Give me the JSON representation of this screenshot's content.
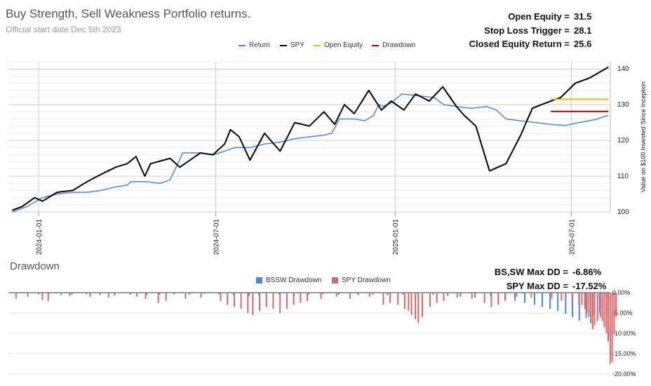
{
  "header": {
    "title": "Buy Strength, Sell Weakness Portfolio returns.",
    "subtitle": "Official start date Dec 5th 2023"
  },
  "stats": {
    "open_equity_label": "Open Equity =",
    "open_equity_value": "31.5",
    "stop_loss_label": "Stop Loss Trigger =",
    "stop_loss_value": "28.1",
    "closed_equity_label": "Closed Equity Return =",
    "closed_equity_value": "25.6"
  },
  "drawdown_stats": {
    "bssw_label": "BS,SW Max DD =",
    "bssw_value": "-6.86%",
    "spy_label": "SPY Max DD =",
    "spy_value": "-17.52%"
  },
  "drawdown_title": "Drawdown",
  "chart_data": [
    {
      "type": "line",
      "title": "Buy Strength, Sell Weakness Portfolio returns.",
      "subtitle": "Official start date Dec 5th 2023",
      "ylabel": "Value on $100 Invested Since Inception",
      "ylim": [
        100,
        142
      ],
      "yticks": [
        "100",
        "110",
        "120",
        "130",
        "140"
      ],
      "xticks": [
        "2024-01-01",
        "2024-07-01",
        "2025-01-01",
        "2025-07-01"
      ],
      "xlim": [
        "2023-12-01",
        "2025-08-10"
      ],
      "legend_position": "top",
      "grid": true,
      "series": [
        {
          "name": "Return",
          "color": "#4a86e8",
          "points": [
            [
              "2023-12-05",
              100.0
            ],
            [
              "2023-12-20",
              101.5
            ],
            [
              "2024-01-05",
              104.0
            ],
            [
              "2024-01-20",
              105.0
            ],
            [
              "2024-02-05",
              105.5
            ],
            [
              "2024-02-20",
              105.5
            ],
            [
              "2024-03-05",
              106.0
            ],
            [
              "2024-03-20",
              107.0
            ],
            [
              "2024-04-01",
              107.5
            ],
            [
              "2024-04-05",
              108.5
            ],
            [
              "2024-04-20",
              108.5
            ],
            [
              "2024-05-05",
              108.0
            ],
            [
              "2024-05-15",
              109.0
            ],
            [
              "2024-05-22",
              113.0
            ],
            [
              "2024-05-28",
              116.5
            ],
            [
              "2024-06-15",
              116.5
            ],
            [
              "2024-06-28",
              116.0
            ],
            [
              "2024-07-10",
              117.0
            ],
            [
              "2024-07-20",
              118.0
            ],
            [
              "2024-08-05",
              118.0
            ],
            [
              "2024-08-20",
              119.0
            ],
            [
              "2024-09-05",
              119.5
            ],
            [
              "2024-09-20",
              120.5
            ],
            [
              "2024-10-05",
              121.0
            ],
            [
              "2024-10-20",
              121.5
            ],
            [
              "2024-10-28",
              122.0
            ],
            [
              "2024-11-05",
              126.0
            ],
            [
              "2024-11-20",
              126.0
            ],
            [
              "2024-12-01",
              125.5
            ],
            [
              "2024-12-10",
              127.0
            ],
            [
              "2024-12-15",
              130.0
            ],
            [
              "2024-12-20",
              129.5
            ],
            [
              "2024-12-28",
              130.5
            ],
            [
              "2025-01-08",
              133.0
            ],
            [
              "2025-01-25",
              132.5
            ],
            [
              "2025-02-10",
              132.0
            ],
            [
              "2025-02-20",
              130.0
            ],
            [
              "2025-03-05",
              129.5
            ],
            [
              "2025-03-20",
              129.0
            ],
            [
              "2025-04-05",
              129.5
            ],
            [
              "2025-04-15",
              128.5
            ],
            [
              "2025-04-25",
              126.0
            ],
            [
              "2025-05-10",
              125.5
            ],
            [
              "2025-05-25",
              125.0
            ],
            [
              "2025-06-10",
              124.5
            ],
            [
              "2025-06-25",
              124.2
            ],
            [
              "2025-07-05",
              124.8
            ],
            [
              "2025-07-15",
              125.3
            ],
            [
              "2025-07-25",
              125.8
            ],
            [
              "2025-08-08",
              127.0
            ]
          ]
        },
        {
          "name": "SPY",
          "color": "#000000",
          "points": [
            [
              "2023-12-05",
              100.5
            ],
            [
              "2023-12-15",
              101.5
            ],
            [
              "2023-12-28",
              104.0
            ],
            [
              "2024-01-05",
              103.0
            ],
            [
              "2024-01-20",
              105.5
            ],
            [
              "2024-02-05",
              106.0
            ],
            [
              "2024-02-20",
              108.5
            ],
            [
              "2024-03-05",
              110.5
            ],
            [
              "2024-03-20",
              112.5
            ],
            [
              "2024-04-01",
              113.5
            ],
            [
              "2024-04-10",
              115.5
            ],
            [
              "2024-04-19",
              110.0
            ],
            [
              "2024-04-25",
              113.5
            ],
            [
              "2024-05-15",
              115.0
            ],
            [
              "2024-05-25",
              112.5
            ],
            [
              "2024-06-15",
              116.5
            ],
            [
              "2024-06-28",
              116.0
            ],
            [
              "2024-07-10",
              119.0
            ],
            [
              "2024-07-16",
              123.0
            ],
            [
              "2024-07-25",
              121.0
            ],
            [
              "2024-08-05",
              114.5
            ],
            [
              "2024-08-20",
              122.0
            ],
            [
              "2024-09-05",
              117.0
            ],
            [
              "2024-09-20",
              125.0
            ],
            [
              "2024-10-05",
              124.0
            ],
            [
              "2024-10-20",
              128.0
            ],
            [
              "2024-10-31",
              124.5
            ],
            [
              "2024-11-10",
              130.0
            ],
            [
              "2024-11-20",
              127.5
            ],
            [
              "2024-12-05",
              134.0
            ],
            [
              "2024-12-18",
              128.5
            ],
            [
              "2024-12-28",
              131.0
            ],
            [
              "2025-01-10",
              128.5
            ],
            [
              "2025-01-22",
              133.0
            ],
            [
              "2025-02-05",
              131.0
            ],
            [
              "2025-02-19",
              135.0
            ],
            [
              "2025-03-05",
              129.5
            ],
            [
              "2025-03-13",
              127.0
            ],
            [
              "2025-03-25",
              124.0
            ],
            [
              "2025-04-08",
              111.5
            ],
            [
              "2025-04-25",
              113.5
            ],
            [
              "2025-05-10",
              121.5
            ],
            [
              "2025-05-22",
              129.0
            ],
            [
              "2025-06-05",
              130.5
            ],
            [
              "2025-06-20",
              132.0
            ],
            [
              "2025-07-05",
              136.0
            ],
            [
              "2025-07-20",
              137.5
            ],
            [
              "2025-08-08",
              140.5
            ]
          ]
        },
        {
          "name": "Open Equity",
          "color": "#f1b70f",
          "points": [
            [
              "2025-06-10",
              131.5
            ],
            [
              "2025-08-08",
              131.5
            ]
          ]
        },
        {
          "name": "Drawdown",
          "color": "#b30000",
          "points": [
            [
              "2025-06-10",
              128.1
            ],
            [
              "2025-08-08",
              128.1
            ]
          ]
        }
      ]
    },
    {
      "type": "bar",
      "title": "Drawdown",
      "ylim": [
        -20,
        0
      ],
      "yticks": [
        "0.00%",
        "-5.00%",
        "-10.00%",
        "-15.00%",
        "-20.00%"
      ],
      "legend_position": "top",
      "series": [
        {
          "name": "BSSW Drawdown",
          "color": "#4a86e8",
          "points": [
            [
              "2024-01-02",
              -0.4
            ],
            [
              "2024-01-12",
              -0.5
            ],
            [
              "2024-01-25",
              -0.6
            ],
            [
              "2024-02-05",
              -0.5
            ],
            [
              "2024-02-20",
              -0.4
            ],
            [
              "2024-03-05",
              -0.6
            ],
            [
              "2024-03-20",
              -0.7
            ],
            [
              "2024-04-05",
              -0.5
            ],
            [
              "2024-04-22",
              -0.6
            ],
            [
              "2024-05-05",
              -0.5
            ],
            [
              "2024-05-20",
              -0.4
            ],
            [
              "2024-06-05",
              -0.5
            ],
            [
              "2024-06-20",
              -0.3
            ],
            [
              "2024-07-05",
              -0.4
            ],
            [
              "2024-07-20",
              -0.6
            ],
            [
              "2024-08-05",
              -0.8
            ],
            [
              "2024-08-15",
              -0.6
            ],
            [
              "2024-09-05",
              -0.5
            ],
            [
              "2024-09-20",
              -0.7
            ],
            [
              "2024-10-05",
              -0.5
            ],
            [
              "2024-10-20",
              -0.4
            ],
            [
              "2024-11-05",
              -0.5
            ],
            [
              "2024-11-25",
              -0.6
            ],
            [
              "2024-12-10",
              -0.5
            ],
            [
              "2024-12-25",
              -0.6
            ],
            [
              "2025-01-10",
              -0.5
            ],
            [
              "2025-01-25",
              -0.4
            ],
            [
              "2025-02-10",
              -0.5
            ],
            [
              "2025-02-25",
              -0.8
            ],
            [
              "2025-03-10",
              -1.0
            ],
            [
              "2025-03-25",
              -1.2
            ],
            [
              "2025-04-10",
              -0.9
            ],
            [
              "2025-04-25",
              -1.5
            ],
            [
              "2025-05-05",
              -2.0
            ],
            [
              "2025-05-15",
              -2.5
            ],
            [
              "2025-05-25",
              -3.0
            ],
            [
              "2025-06-02",
              -3.5
            ],
            [
              "2025-06-10",
              -4.0
            ],
            [
              "2025-06-18",
              -4.5
            ],
            [
              "2025-06-26",
              -5.2
            ],
            [
              "2025-07-03",
              -6.0
            ],
            [
              "2025-07-10",
              -6.86
            ],
            [
              "2025-07-17",
              -6.2
            ],
            [
              "2025-07-24",
              -5.5
            ],
            [
              "2025-07-31",
              -5.0
            ],
            [
              "2025-08-07",
              -4.5
            ]
          ]
        },
        {
          "name": "SPY Drawdown",
          "color": "#e06666",
          "points": [
            [
              "2023-12-08",
              -1.5
            ],
            [
              "2023-12-20",
              -1.0
            ],
            [
              "2024-01-04",
              -1.8
            ],
            [
              "2024-01-10",
              -2.0
            ],
            [
              "2024-02-01",
              -0.8
            ],
            [
              "2024-02-22",
              -1.0
            ],
            [
              "2024-03-12",
              -1.2
            ],
            [
              "2024-04-10",
              -1.0
            ],
            [
              "2024-04-19",
              -1.5
            ],
            [
              "2024-05-02",
              -2.5
            ],
            [
              "2024-05-10",
              -2.0
            ],
            [
              "2024-05-30",
              -1.5
            ],
            [
              "2024-06-15",
              -1.2
            ],
            [
              "2024-07-05",
              -2.0
            ],
            [
              "2024-07-12",
              -3.0
            ],
            [
              "2024-07-19",
              -3.5
            ],
            [
              "2024-07-26",
              -4.0
            ],
            [
              "2024-08-02",
              -5.0
            ],
            [
              "2024-08-07",
              -5.5
            ],
            [
              "2024-08-14",
              -4.5
            ],
            [
              "2024-08-21",
              -3.5
            ],
            [
              "2024-08-28",
              -4.0
            ],
            [
              "2024-09-04",
              -5.0
            ],
            [
              "2024-09-11",
              -4.0
            ],
            [
              "2024-09-18",
              -3.0
            ],
            [
              "2024-09-25",
              -2.5
            ],
            [
              "2024-10-02",
              -2.0
            ],
            [
              "2024-10-16",
              -1.5
            ],
            [
              "2024-11-01",
              -1.0
            ],
            [
              "2024-11-15",
              -1.5
            ],
            [
              "2024-12-05",
              -1.0
            ],
            [
              "2024-12-19",
              -3.0
            ],
            [
              "2024-12-26",
              -2.5
            ],
            [
              "2025-01-03",
              -3.0
            ],
            [
              "2025-01-10",
              -4.0
            ],
            [
              "2025-01-14",
              -4.5
            ],
            [
              "2025-01-17",
              -5.5
            ],
            [
              "2025-01-21",
              -6.5
            ],
            [
              "2025-01-24",
              -7.5
            ],
            [
              "2025-01-28",
              -6.0
            ],
            [
              "2025-02-05",
              -3.5
            ],
            [
              "2025-02-12",
              -2.5
            ],
            [
              "2025-02-19",
              -2.0
            ],
            [
              "2025-03-05",
              -1.2
            ],
            [
              "2025-03-20",
              -1.5
            ],
            [
              "2025-04-02",
              -2.5
            ],
            [
              "2025-04-09",
              -3.5
            ],
            [
              "2025-04-16",
              -3.0
            ],
            [
              "2025-04-23",
              -2.0
            ],
            [
              "2025-05-05",
              -1.0
            ],
            [
              "2025-05-20",
              -1.2
            ],
            [
              "2025-06-10",
              -1.5
            ],
            [
              "2025-06-20",
              -2.0
            ],
            [
              "2025-07-01",
              -2.5
            ],
            [
              "2025-07-08",
              -3.0
            ],
            [
              "2025-07-11",
              -3.0
            ],
            [
              "2025-07-14",
              -4.0
            ],
            [
              "2025-07-16",
              -5.0
            ],
            [
              "2025-07-18",
              -6.0
            ],
            [
              "2025-07-20",
              -7.5
            ],
            [
              "2025-07-22",
              -9.0
            ],
            [
              "2025-07-24",
              -8.0
            ],
            [
              "2025-07-27",
              -7.0
            ],
            [
              "2025-07-30",
              -6.0
            ],
            [
              "2025-08-01",
              -7.0
            ],
            [
              "2025-08-03",
              -8.5
            ],
            [
              "2025-08-05",
              -10.0
            ],
            [
              "2025-08-07",
              -12.0
            ],
            [
              "2025-08-09",
              -17.52
            ],
            [
              "2025-08-11",
              -17.0
            ],
            [
              "2025-08-13",
              -10.0
            ],
            [
              "2025-08-15",
              -6.0
            ]
          ]
        }
      ]
    }
  ]
}
